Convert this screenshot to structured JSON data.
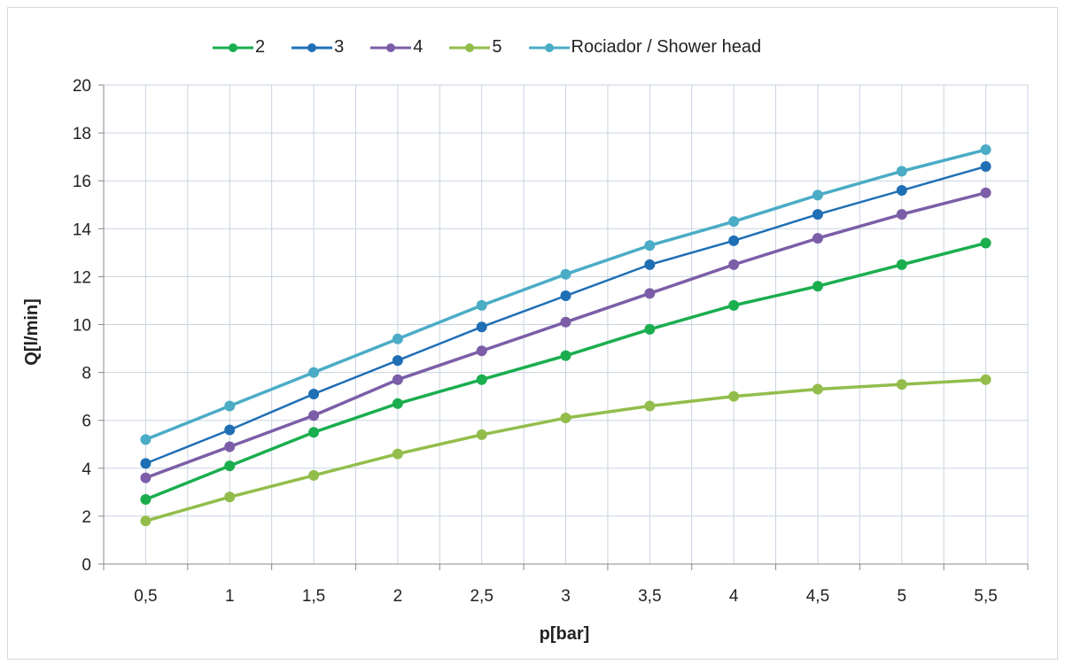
{
  "chart_data": {
    "type": "line",
    "title": "",
    "xlabel": "p[bar]",
    "ylabel": "Q[l/min]",
    "x": [
      0.5,
      1,
      1.5,
      2,
      2.5,
      3,
      3.5,
      4,
      4.5,
      5,
      5.5
    ],
    "x_tick_labels": [
      "0,5",
      "1",
      "1,5",
      "2",
      "2,5",
      "3",
      "3,5",
      "4",
      "4,5",
      "5",
      "5,5"
    ],
    "y_ticks": [
      0,
      2,
      4,
      6,
      8,
      10,
      12,
      14,
      16,
      18,
      20
    ],
    "ylim": [
      0,
      20
    ],
    "grid": true,
    "legend_position": "top",
    "series": [
      {
        "name": "2",
        "color": "#1aae4f",
        "values": [
          2.7,
          4.1,
          5.5,
          6.7,
          7.7,
          8.7,
          9.8,
          10.8,
          11.6,
          12.5,
          13.4
        ]
      },
      {
        "name": "3",
        "color": "#1f6fb5",
        "values": [
          4.2,
          5.6,
          7.1,
          8.5,
          9.9,
          11.2,
          12.5,
          13.5,
          14.6,
          15.6,
          16.6
        ]
      },
      {
        "name": "4",
        "color": "#7b5ea7",
        "values": [
          3.6,
          4.9,
          6.2,
          7.7,
          8.9,
          10.1,
          11.3,
          12.5,
          13.6,
          14.6,
          15.5
        ]
      },
      {
        "name": "5",
        "color": "#92bd4b",
        "values": [
          1.8,
          2.8,
          3.7,
          4.6,
          5.4,
          6.1,
          6.6,
          7.0,
          7.3,
          7.5,
          7.7
        ]
      },
      {
        "name": "Rociador / Shower head",
        "color": "#4bacc6",
        "values": [
          5.2,
          6.6,
          8.0,
          9.4,
          10.8,
          12.1,
          13.3,
          14.3,
          15.4,
          16.4,
          17.3
        ]
      }
    ]
  }
}
